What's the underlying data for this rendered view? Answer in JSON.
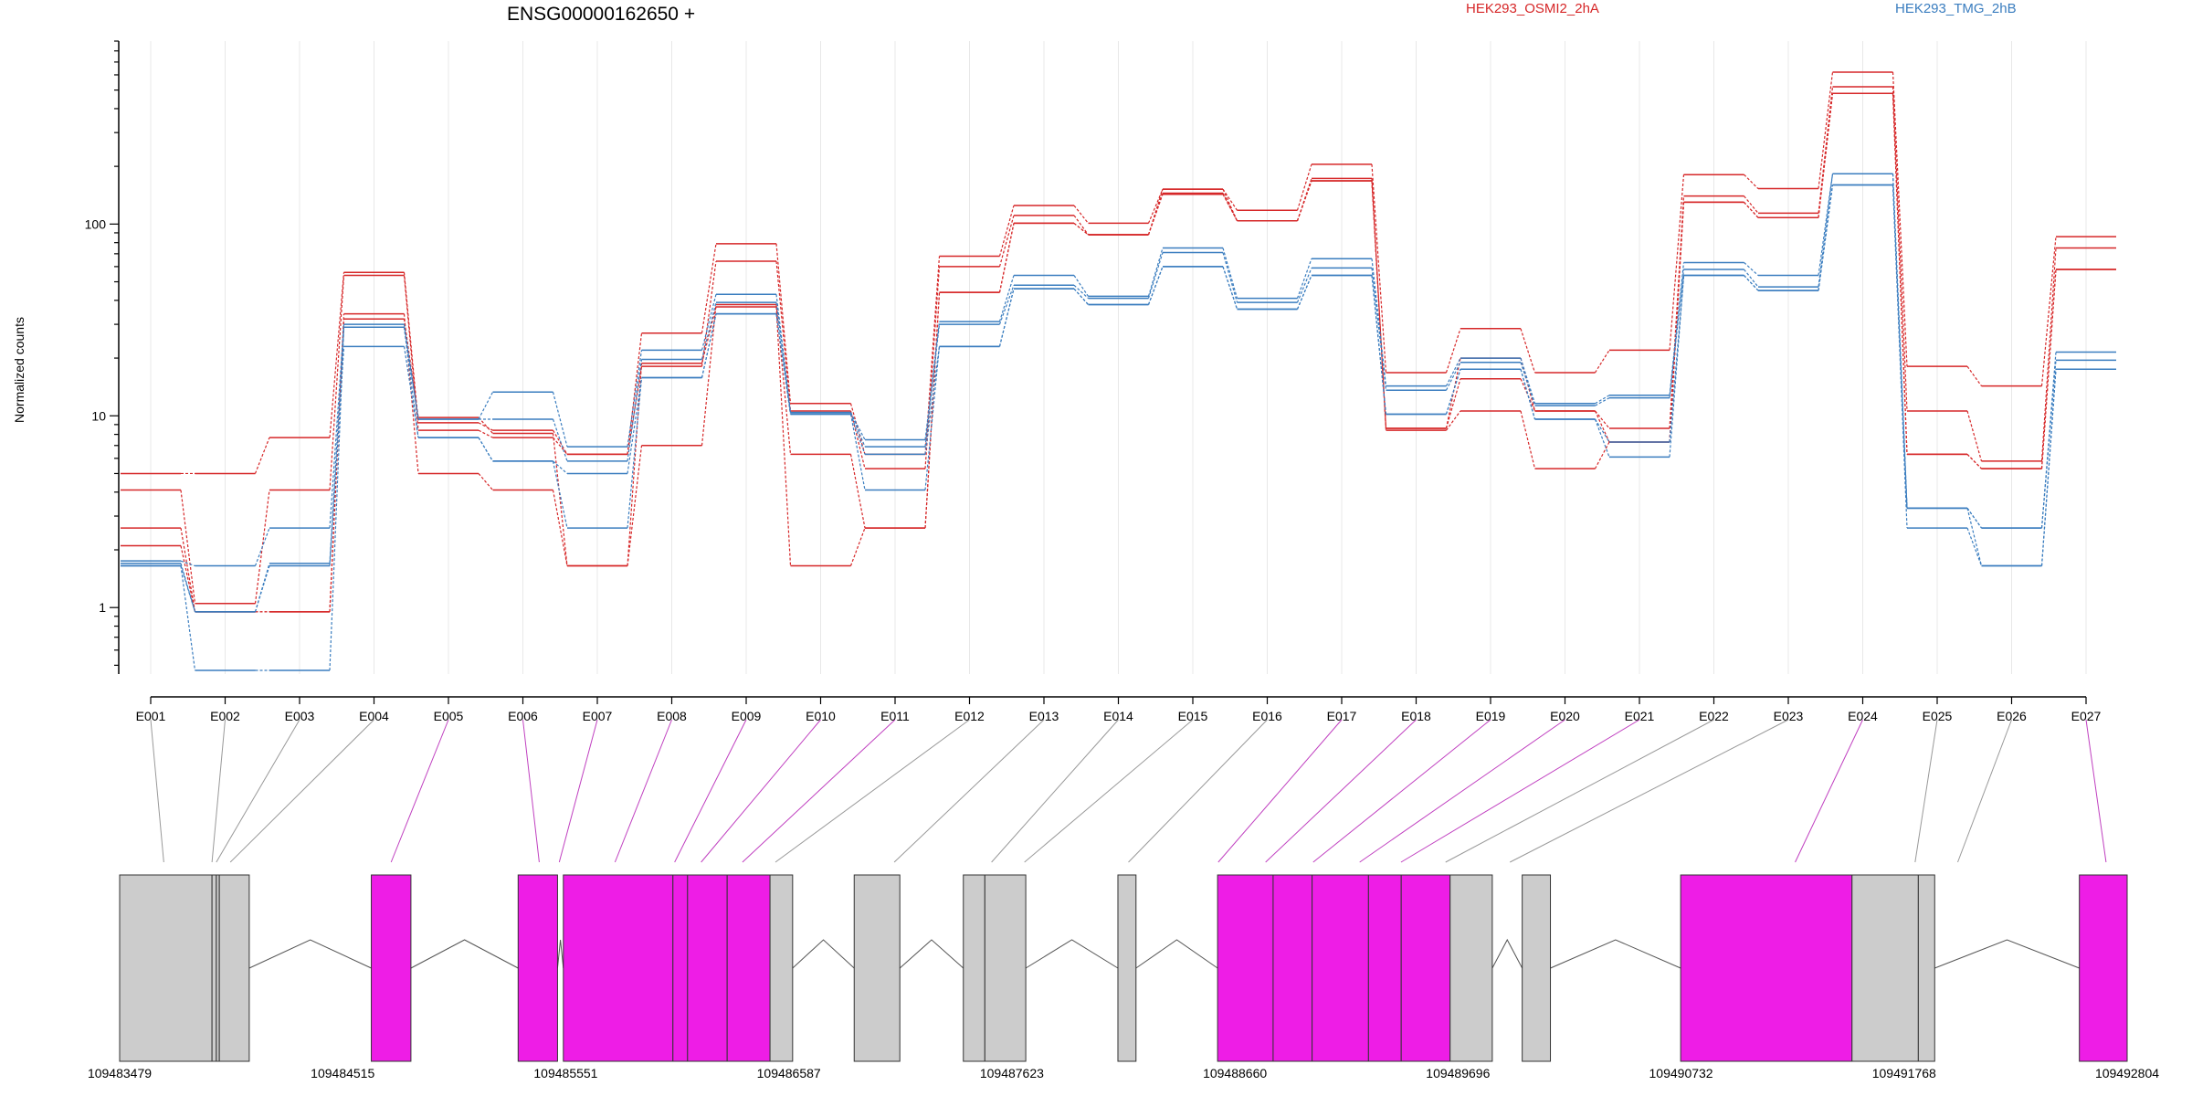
{
  "chart_data": {
    "type": "line",
    "title": "ENSG00000162650 +",
    "ylabel": "Normalized counts",
    "yscale": "log",
    "ylim": [
      0.45,
      900
    ],
    "yticks": [
      {
        "value": 1,
        "label": "1"
      },
      {
        "value": 10,
        "label": "10"
      },
      {
        "value": 100,
        "label": "100"
      }
    ],
    "categories": [
      "E001",
      "E002",
      "E003",
      "E004",
      "E005",
      "E006",
      "E007",
      "E008",
      "E009",
      "E010",
      "E011",
      "E012",
      "E013",
      "E014",
      "E015",
      "E016",
      "E017",
      "E018",
      "E019",
      "E020",
      "E021",
      "E022",
      "E023",
      "E024",
      "E025",
      "E026",
      "E027"
    ],
    "legend": [
      {
        "name": "HEK293_OSMI2_2hA",
        "color": "#d62728"
      },
      {
        "name": "HEK293_TMG_2hB",
        "color": "#3a7dbf"
      }
    ],
    "series": [
      {
        "group": "HEK293_OSMI2_2hA",
        "color": "#d62728",
        "values": [
          5.0,
          5.0,
          7.7,
          56,
          9.2,
          8.4,
          6.3,
          27,
          79,
          11.6,
          6.3,
          68,
          125,
          101,
          152,
          118,
          205,
          16.8,
          28.5,
          16.8,
          22,
          181,
          153,
          620,
          18.1,
          14.3,
          86
        ]
      },
      {
        "group": "HEK293_OSMI2_2hA",
        "color": "#d62728",
        "values": [
          4.1,
          1.05,
          4.1,
          54,
          8.4,
          7.7,
          6.3,
          18.1,
          64,
          10.6,
          5.3,
          60,
          111,
          88,
          143,
          104,
          173,
          8.6,
          20,
          10.6,
          8.6,
          140,
          114,
          520,
          10.6,
          5.8,
          75
        ]
      },
      {
        "group": "HEK293_OSMI2_2hA",
        "color": "#d62728",
        "values": [
          2.6,
          0.95,
          0.95,
          34,
          5.0,
          4.1,
          1.65,
          7.0,
          38,
          6.3,
          2.6,
          44,
          101,
          88,
          145,
          104,
          168,
          8.6,
          15.6,
          10.6,
          7.3,
          130,
          108,
          480,
          6.3,
          5.3,
          58
        ]
      },
      {
        "group": "HEK293_OSMI2_2hA",
        "color": "#d62728",
        "values": [
          2.1,
          0.95,
          0.95,
          32,
          9.8,
          8.1,
          1.65,
          18.8,
          37,
          1.65,
          2.6,
          44,
          101,
          88,
          152,
          104,
          168,
          8.4,
          10.6,
          5.3,
          7.3,
          130,
          108,
          480,
          6.3,
          5.3,
          58
        ]
      },
      {
        "group": "HEK293_TMG_2hB",
        "color": "#3a7dbf",
        "values": [
          1.75,
          1.65,
          2.6,
          30,
          9.6,
          13.3,
          6.9,
          22,
          43,
          10.4,
          7.5,
          31,
          54,
          42,
          75,
          41,
          66,
          14.3,
          20,
          11.6,
          12.8,
          63,
          54,
          183,
          3.3,
          2.6,
          21.5
        ]
      },
      {
        "group": "HEK293_TMG_2hB",
        "color": "#3a7dbf",
        "values": [
          1.7,
          0.95,
          1.7,
          29,
          9.6,
          9.6,
          5.8,
          19.7,
          39,
          10.4,
          6.9,
          30,
          48,
          41,
          71,
          39,
          59,
          13.6,
          19,
          11.3,
          12.4,
          58,
          47,
          183,
          3.3,
          2.6,
          19.5
        ]
      },
      {
        "group": "HEK293_TMG_2hB",
        "color": "#3a7dbf",
        "values": [
          1.65,
          0.95,
          1.65,
          23,
          7.7,
          5.8,
          5.0,
          15.8,
          34,
          10.2,
          6.3,
          23,
          46,
          38,
          60,
          36,
          54,
          10.2,
          17.5,
          9.6,
          7.3,
          54,
          45,
          160,
          3.3,
          1.65,
          17.5
        ]
      },
      {
        "group": "HEK293_TMG_2hB",
        "color": "#3a7dbf",
        "values": [
          1.65,
          0.47,
          0.47,
          29,
          7.7,
          5.8,
          2.6,
          15.8,
          34,
          10.2,
          4.1,
          23,
          46,
          38,
          60,
          36,
          54,
          10.2,
          17.5,
          9.6,
          6.1,
          54,
          45,
          160,
          2.6,
          1.65,
          17.5
        ]
      }
    ],
    "gene_model": {
      "coord_ticks": [
        "109483479",
        "109484515",
        "109485551",
        "109486587",
        "109487623",
        "109488660",
        "109489696",
        "109490732",
        "109491768",
        "109492804"
      ],
      "coord_min": 109483479,
      "coord_max": 109492804,
      "exons": [
        {
          "start": 109483479,
          "end": 109483908,
          "color": "#cccccc"
        },
        {
          "start": 109483908,
          "end": 109483928,
          "color": "#cccccc"
        },
        {
          "start": 109483928,
          "end": 109483942,
          "color": "#cccccc"
        },
        {
          "start": 109483942,
          "end": 109484081,
          "color": "#cccccc"
        },
        {
          "start": 109484648,
          "end": 109484832,
          "color": "#ee1de6"
        },
        {
          "start": 109485330,
          "end": 109485513,
          "color": "#ee1de6"
        },
        {
          "start": 109485540,
          "end": 109486049,
          "color": "#ee1de6"
        },
        {
          "start": 109486049,
          "end": 109486117,
          "color": "#ee1de6"
        },
        {
          "start": 109486117,
          "end": 109486301,
          "color": "#ee1de6"
        },
        {
          "start": 109486301,
          "end": 109486500,
          "color": "#ee1de6"
        },
        {
          "start": 109486500,
          "end": 109486605,
          "color": "#cccccc"
        },
        {
          "start": 109486891,
          "end": 109487103,
          "color": "#cccccc"
        },
        {
          "start": 109487398,
          "end": 109487498,
          "color": "#cccccc"
        },
        {
          "start": 109487498,
          "end": 109487688,
          "color": "#cccccc"
        },
        {
          "start": 109488116,
          "end": 109488200,
          "color": "#cccccc"
        },
        {
          "start": 109488579,
          "end": 109488837,
          "color": "#ee1de6"
        },
        {
          "start": 109488837,
          "end": 109489018,
          "color": "#ee1de6"
        },
        {
          "start": 109489018,
          "end": 109489280,
          "color": "#ee1de6"
        },
        {
          "start": 109489280,
          "end": 109489432,
          "color": "#ee1de6"
        },
        {
          "start": 109489432,
          "end": 109489659,
          "color": "#ee1de6"
        },
        {
          "start": 109489659,
          "end": 109489855,
          "color": "#cccccc"
        },
        {
          "start": 109489994,
          "end": 109490125,
          "color": "#cccccc"
        },
        {
          "start": 109490730,
          "end": 109491526,
          "color": "#ee1de6"
        },
        {
          "start": 109491526,
          "end": 109491834,
          "color": "#cccccc"
        },
        {
          "start": 109491834,
          "end": 109491910,
          "color": "#cccccc"
        },
        {
          "start": 109492582,
          "end": 109492804,
          "color": "#ee1de6"
        }
      ],
      "connectors": [
        {
          "to": 109483684,
          "color": "#999999"
        },
        {
          "to": 109483908,
          "color": "#999999"
        },
        {
          "to": 109483928,
          "color": "#999999"
        },
        {
          "to": 109483993,
          "color": "#999999"
        },
        {
          "to": 109484740,
          "color": "#c040c0"
        },
        {
          "to": 109485428,
          "color": "#c040c0"
        },
        {
          "to": 109485521,
          "color": "#c040c0"
        },
        {
          "to": 109485780,
          "color": "#c040c0"
        },
        {
          "to": 109486057,
          "color": "#c040c0"
        },
        {
          "to": 109486180,
          "color": "#c040c0"
        },
        {
          "to": 109486372,
          "color": "#c040c0"
        },
        {
          "to": 109486525,
          "color": "#999999"
        },
        {
          "to": 109487077,
          "color": "#999999"
        },
        {
          "to": 109487529,
          "color": "#999999"
        },
        {
          "to": 109487682,
          "color": "#999999"
        },
        {
          "to": 109488165,
          "color": "#999999"
        },
        {
          "to": 109488582,
          "color": "#c040c0"
        },
        {
          "to": 109488802,
          "color": "#c040c0"
        },
        {
          "to": 109489023,
          "color": "#c040c0"
        },
        {
          "to": 109489239,
          "color": "#c040c0"
        },
        {
          "to": 109489431,
          "color": "#c040c0"
        },
        {
          "to": 109489638,
          "color": "#999999"
        },
        {
          "to": 109489937,
          "color": "#999999"
        },
        {
          "to": 109491262,
          "color": "#c040c0"
        },
        {
          "to": 109491819,
          "color": "#999999"
        },
        {
          "to": 109492017,
          "color": "#999999"
        },
        {
          "to": 109492706,
          "color": "#c040c0"
        }
      ]
    }
  }
}
